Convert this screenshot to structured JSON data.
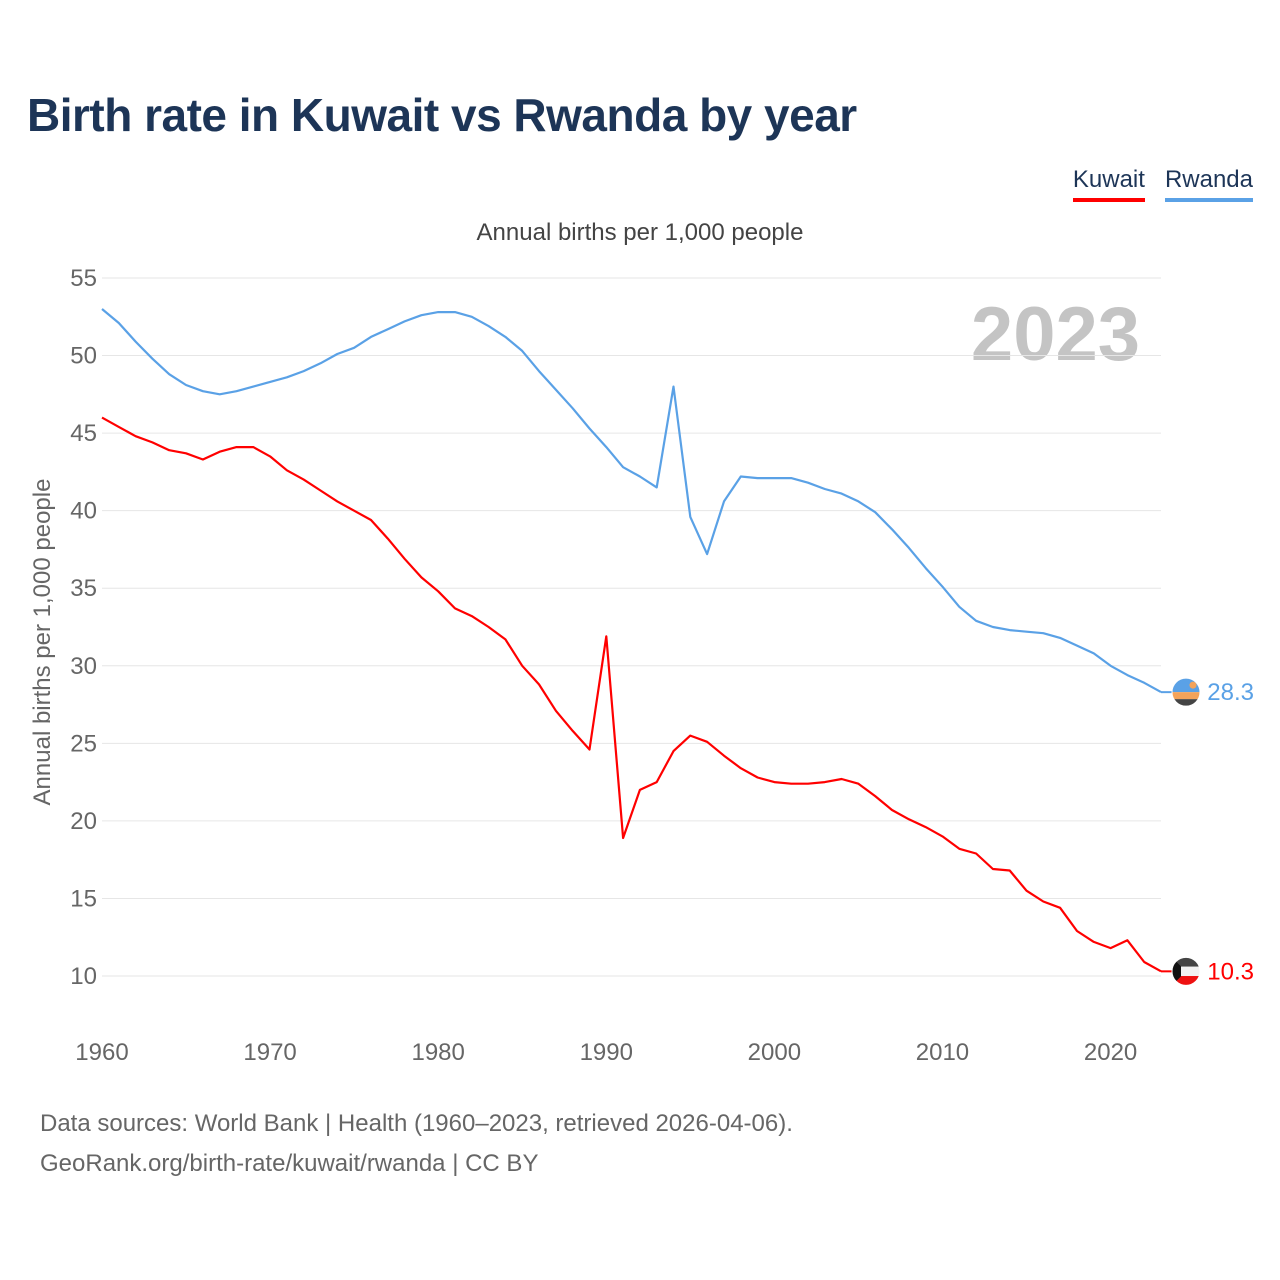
{
  "title": "Birth rate in Kuwait vs Rwanda by year",
  "legend": [
    {
      "name": "Kuwait",
      "color": "#ff0000"
    },
    {
      "name": "Rwanda",
      "color": "#5aa1e6"
    }
  ],
  "year_watermark": "2023",
  "footer": {
    "sources": "Data sources: World Bank | Health (1960–2023, retrieved 2026-04-06).",
    "attribution": "GeoRank.org/birth-rate/kuwait/rwanda | CC BY"
  },
  "chart_data": {
    "type": "line",
    "title": "Birth rate in Kuwait vs Rwanda by year",
    "subtitle": "Annual births per 1,000 people",
    "xlabel": "",
    "ylabel": "Annual births per 1,000 people",
    "xlim": [
      1960,
      2023
    ],
    "ylim": [
      10,
      55
    ],
    "yticks": [
      10,
      15,
      20,
      25,
      30,
      35,
      40,
      45,
      50,
      55
    ],
    "xticks": [
      1960,
      1970,
      1980,
      1990,
      2000,
      2010,
      2020
    ],
    "grid": true,
    "x": [
      1960,
      1961,
      1962,
      1963,
      1964,
      1965,
      1966,
      1967,
      1968,
      1969,
      1970,
      1971,
      1972,
      1973,
      1974,
      1975,
      1976,
      1977,
      1978,
      1979,
      1980,
      1981,
      1982,
      1983,
      1984,
      1985,
      1986,
      1987,
      1988,
      1989,
      1990,
      1991,
      1992,
      1993,
      1994,
      1995,
      1996,
      1997,
      1998,
      1999,
      2000,
      2001,
      2002,
      2003,
      2004,
      2005,
      2006,
      2007,
      2008,
      2009,
      2010,
      2011,
      2012,
      2013,
      2014,
      2015,
      2016,
      2017,
      2018,
      2019,
      2020,
      2021,
      2022,
      2023
    ],
    "series": [
      {
        "name": "Kuwait",
        "color": "#ff0000",
        "end_label": "10.3",
        "values": [
          46.0,
          45.4,
          44.8,
          44.4,
          43.9,
          43.7,
          43.3,
          43.8,
          44.1,
          44.1,
          43.5,
          42.6,
          42.0,
          41.3,
          40.6,
          40.0,
          39.4,
          38.2,
          36.9,
          35.7,
          34.8,
          33.7,
          33.2,
          32.5,
          31.7,
          30.0,
          28.8,
          27.1,
          25.8,
          24.6,
          31.9,
          18.9,
          22.0,
          22.5,
          24.5,
          25.5,
          25.1,
          24.2,
          23.4,
          22.8,
          22.5,
          22.4,
          22.4,
          22.5,
          22.7,
          22.4,
          21.6,
          20.7,
          20.1,
          19.6,
          19.0,
          18.2,
          17.9,
          16.9,
          16.8,
          15.5,
          14.8,
          14.4,
          12.9,
          12.2,
          11.8,
          12.3,
          10.9,
          10.3
        ]
      },
      {
        "name": "Rwanda",
        "color": "#5aa1e6",
        "end_label": "28.3",
        "values": [
          53.0,
          52.1,
          50.9,
          49.8,
          48.8,
          48.1,
          47.7,
          47.5,
          47.7,
          48.0,
          48.3,
          48.6,
          49.0,
          49.5,
          50.1,
          50.5,
          51.2,
          51.7,
          52.2,
          52.6,
          52.8,
          52.8,
          52.5,
          51.9,
          51.2,
          50.3,
          49.0,
          47.8,
          46.6,
          45.3,
          44.1,
          42.8,
          42.2,
          41.5,
          48.0,
          39.6,
          37.2,
          40.6,
          42.2,
          42.1,
          42.1,
          42.1,
          41.8,
          41.4,
          41.1,
          40.6,
          39.9,
          38.8,
          37.6,
          36.3,
          35.1,
          33.8,
          32.9,
          32.5,
          32.3,
          32.2,
          32.1,
          31.8,
          31.3,
          30.8,
          30.0,
          29.4,
          28.9,
          28.3
        ]
      }
    ]
  }
}
